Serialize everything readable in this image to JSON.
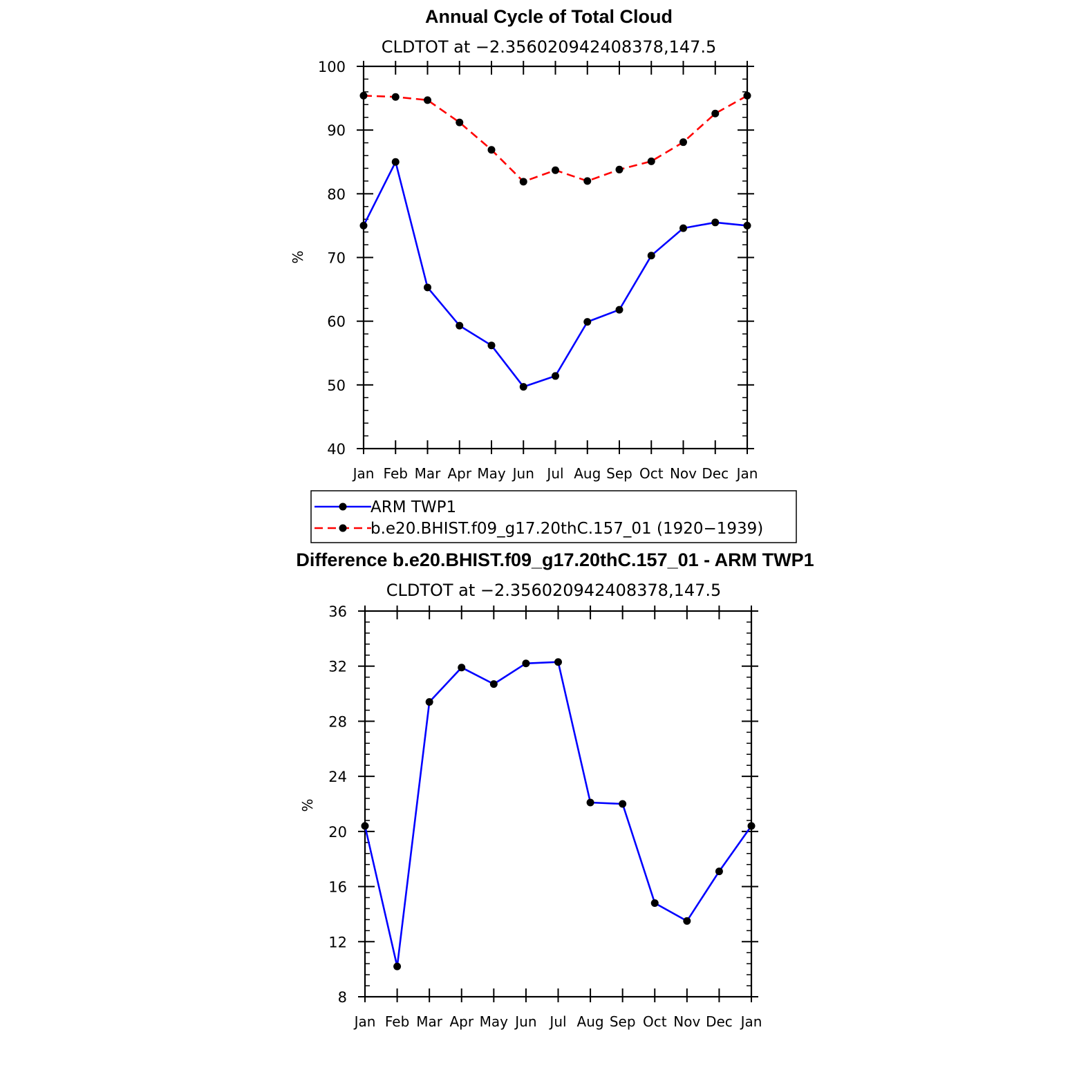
{
  "chart_data": [
    {
      "type": "line",
      "title": "Annual Cycle of Total Cloud",
      "subtitle": "CLDTOT at −2.356020942408378,147.5",
      "xlabel": "",
      "ylabel": "%",
      "categories": [
        "Jan",
        "Feb",
        "Mar",
        "Apr",
        "May",
        "Jun",
        "Jul",
        "Aug",
        "Sep",
        "Oct",
        "Nov",
        "Dec",
        "Jan"
      ],
      "ylim": [
        40,
        100
      ],
      "yticks": [
        40,
        50,
        60,
        70,
        80,
        90,
        100
      ],
      "grid": false,
      "legend_position": "bottom",
      "series": [
        {
          "name": "ARM TWP1",
          "color": "#0000ff",
          "line_style": "solid",
          "values": [
            75.0,
            85.0,
            65.3,
            59.3,
            56.2,
            49.7,
            51.4,
            59.9,
            61.8,
            70.3,
            74.6,
            75.5,
            75.0
          ]
        },
        {
          "name": "b.e20.BHIST.f09_g17.20thC.157_01 (1920−1939)",
          "color": "#ff0000",
          "line_style": "dashed",
          "values": [
            95.4,
            95.2,
            94.7,
            91.2,
            86.9,
            81.9,
            83.7,
            82.0,
            83.8,
            85.1,
            88.1,
            92.6,
            95.4
          ]
        }
      ]
    },
    {
      "type": "line",
      "title": "Difference b.e20.BHIST.f09_g17.20thC.157_01 - ARM TWP1",
      "subtitle": "CLDTOT at −2.356020942408378,147.5",
      "xlabel": "",
      "ylabel": "%",
      "categories": [
        "Jan",
        "Feb",
        "Mar",
        "Apr",
        "May",
        "Jun",
        "Jul",
        "Aug",
        "Sep",
        "Oct",
        "Nov",
        "Dec",
        "Jan"
      ],
      "ylim": [
        8,
        36
      ],
      "yticks": [
        8,
        12,
        16,
        20,
        24,
        28,
        32,
        36
      ],
      "grid": false,
      "series": [
        {
          "color": "#0000ff",
          "line_style": "solid",
          "values": [
            20.4,
            10.2,
            29.4,
            31.9,
            30.7,
            32.2,
            32.3,
            22.1,
            22.0,
            14.8,
            13.5,
            17.1,
            20.4
          ]
        }
      ]
    }
  ]
}
